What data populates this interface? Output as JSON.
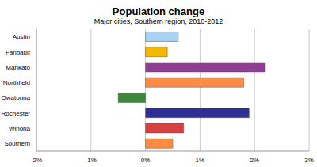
{
  "chart_data": {
    "type": "bar",
    "orientation": "horizontal",
    "title": "Population change",
    "subtitle": "Major cities, Southern region, 2010-2012",
    "categories": [
      "Austin",
      "Faribault",
      "Mankato",
      "Northfield",
      "Owatonna",
      "Rochester",
      "Winona",
      "Southern"
    ],
    "values": [
      0.6,
      0.4,
      2.2,
      1.8,
      -0.5,
      1.9,
      0.7,
      0.5
    ],
    "colors": [
      "#a9d3f5",
      "#f5b800",
      "#8e3f92",
      "#ff8c42",
      "#3f873f",
      "#2e2e96",
      "#d94040",
      "#ff8c42"
    ],
    "xlim": [
      -2,
      3
    ],
    "xticks": [
      {
        "value": -2,
        "label": "-2%"
      },
      {
        "value": -1,
        "label": "-1%"
      },
      {
        "value": 0,
        "label": "0%"
      },
      {
        "value": 1,
        "label": "1%"
      },
      {
        "value": 2,
        "label": "2%"
      },
      {
        "value": 3,
        "label": "3%"
      }
    ],
    "grid": true
  }
}
